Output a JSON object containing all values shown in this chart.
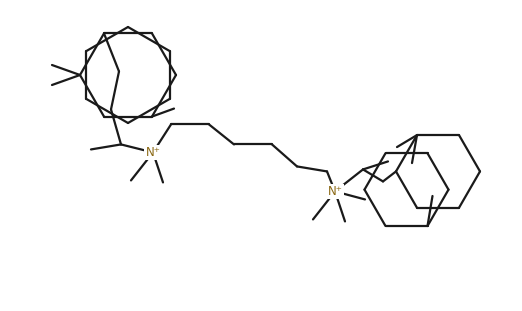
{
  "bg_color": "#ffffff",
  "line_color": "#1a1a1a",
  "line_width": 1.6,
  "fig_width": 5.22,
  "fig_height": 3.11,
  "dpi": 100
}
